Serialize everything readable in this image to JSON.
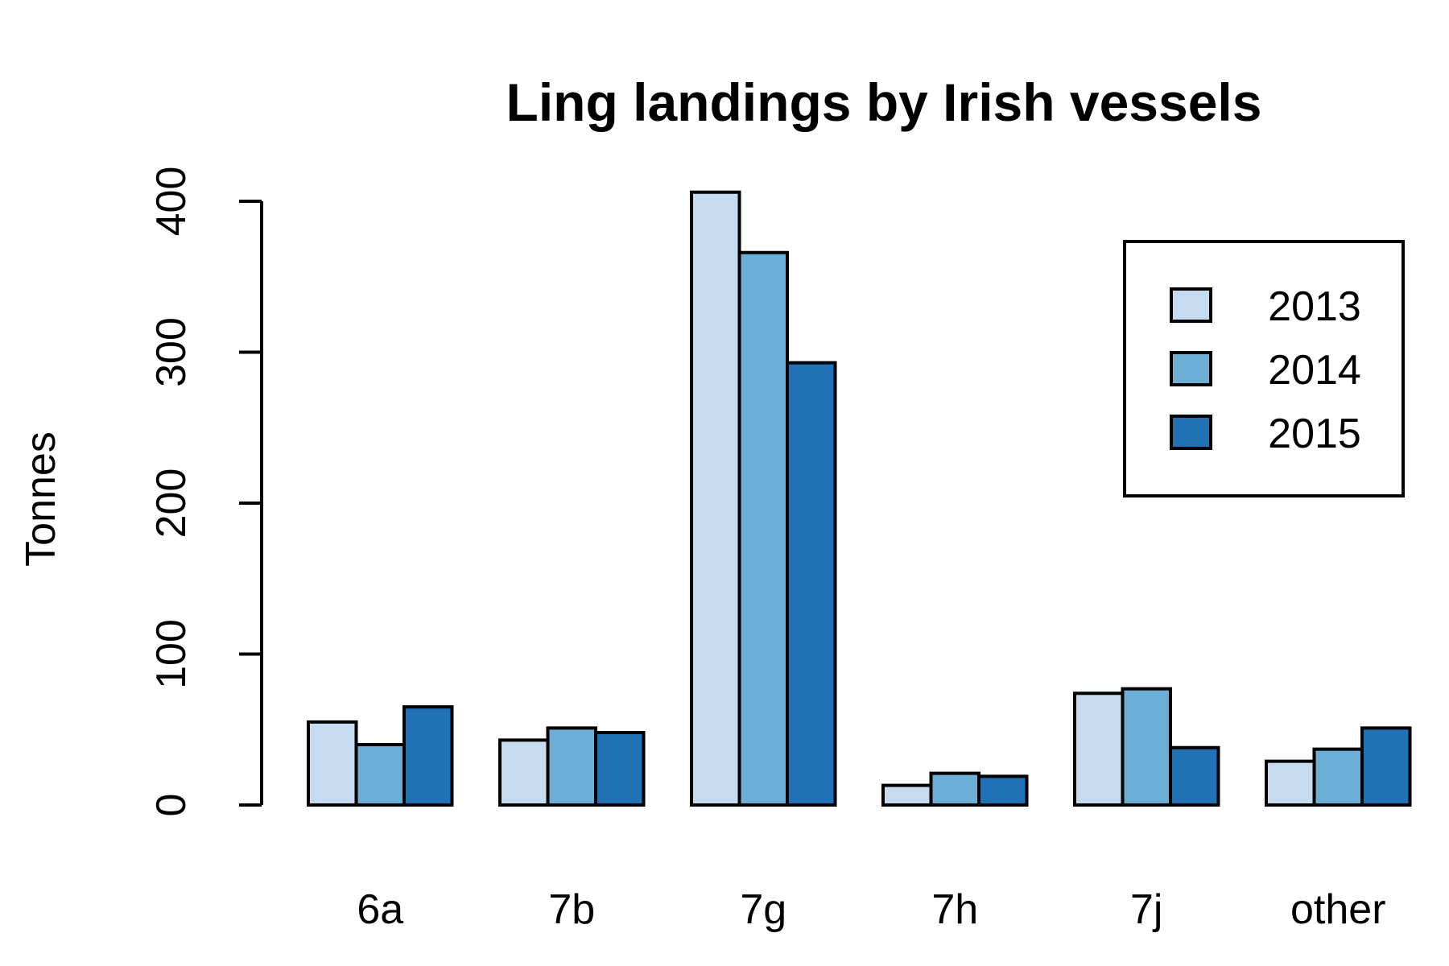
{
  "chart_data": {
    "type": "bar",
    "title": "Ling landings by Irish vessels",
    "xlabel": "",
    "ylabel": "Tonnes",
    "categories": [
      "6a",
      "7b",
      "7g",
      "7h",
      "7j",
      "other"
    ],
    "series": [
      {
        "name": "2013",
        "color": "#c6dbef",
        "values": [
          55,
          43,
          406,
          13,
          74,
          29
        ]
      },
      {
        "name": "2014",
        "color": "#6baed6",
        "values": [
          40,
          51,
          366,
          21,
          77,
          37
        ]
      },
      {
        "name": "2015",
        "color": "#2171b5",
        "values": [
          65,
          48,
          293,
          19,
          38,
          51
        ]
      }
    ],
    "yticks": [
      0,
      100,
      200,
      300,
      400
    ],
    "ylim": [
      0,
      410
    ],
    "legend_position": "top-right",
    "grid": false
  }
}
